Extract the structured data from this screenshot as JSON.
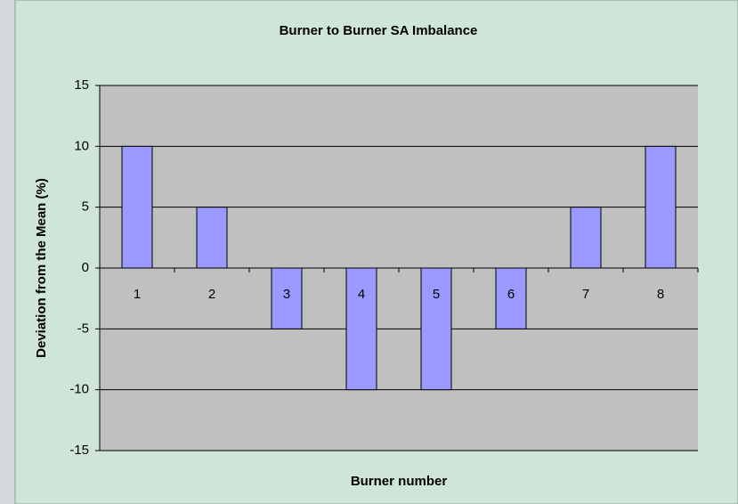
{
  "chart_data": {
    "type": "bar",
    "title": "Burner to Burner SA Imbalance",
    "x_label": "Burner number",
    "y_label": "Deviation from the Mean (%)",
    "categories": [
      "1",
      "2",
      "3",
      "4",
      "5",
      "6",
      "7",
      "8"
    ],
    "values": [
      10,
      5,
      -5,
      -10,
      -10,
      -5,
      5,
      10
    ],
    "color": "#9999ff",
    "ylim": [
      -15,
      15
    ],
    "yticks": [
      -15,
      -10,
      -5,
      0,
      5,
      10,
      15
    ],
    "grid": true
  }
}
